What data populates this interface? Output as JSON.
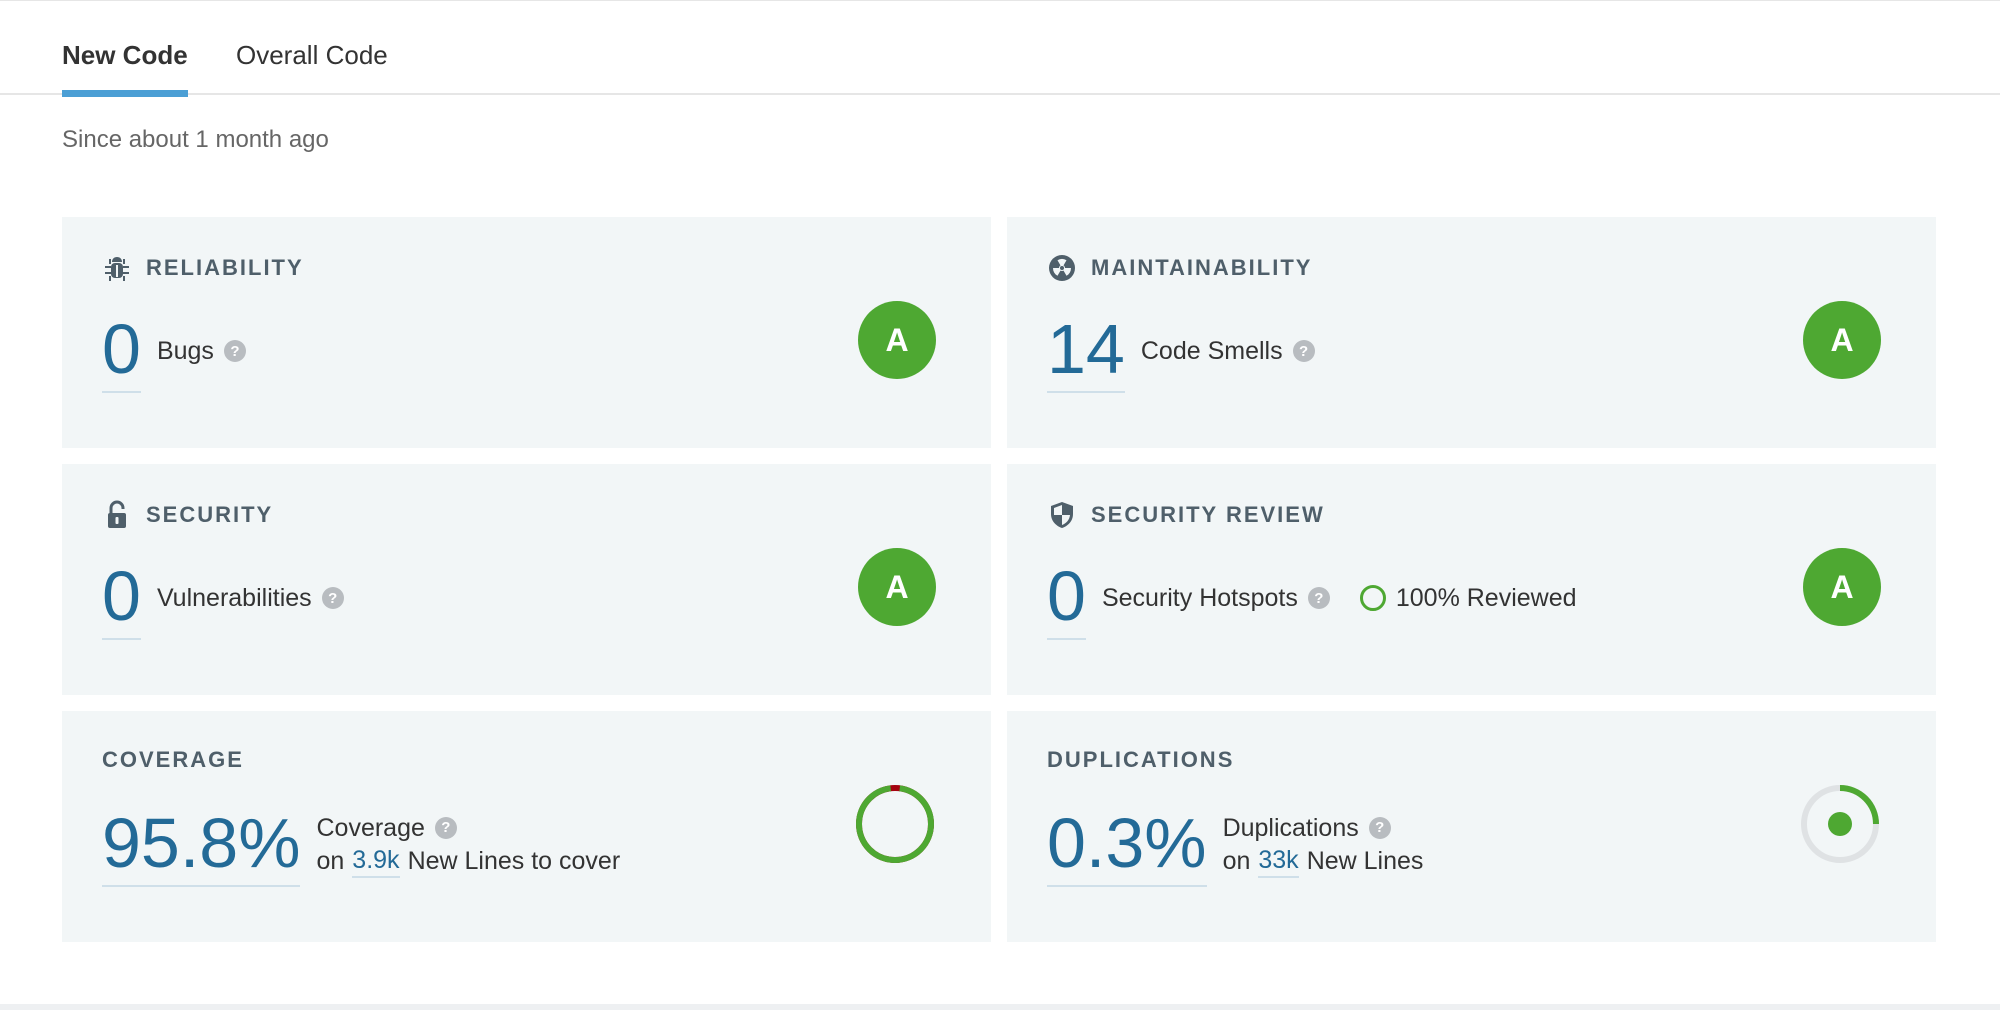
{
  "tabs": {
    "new_code": "New Code",
    "overall_code": "Overall Code"
  },
  "since": "Since about 1 month ago",
  "reliability": {
    "title": "RELIABILITY",
    "value": "0",
    "label": "Bugs",
    "rating": "A",
    "icon": "bug-icon"
  },
  "maintainability": {
    "title": "MAINTAINABILITY",
    "value": "14",
    "label": "Code Smells",
    "rating": "A",
    "icon": "radioactive-icon"
  },
  "security": {
    "title": "SECURITY",
    "value": "0",
    "label": "Vulnerabilities",
    "rating": "A",
    "icon": "lock-open-icon"
  },
  "security_review": {
    "title": "SECURITY REVIEW",
    "value": "0",
    "label": "Security Hotspots",
    "reviewed": "100% Reviewed",
    "rating": "A",
    "icon": "shield-icon"
  },
  "coverage": {
    "title": "COVERAGE",
    "value": "95.8%",
    "label": "Coverage",
    "on_text": "on",
    "lines_value": "3.9k",
    "lines_label": "New Lines to cover",
    "percent": 95.8
  },
  "duplications": {
    "title": "DUPLICATIONS",
    "value": "0.3%",
    "label": "Duplications",
    "on_text": "on",
    "lines_value": "33k",
    "lines_label": "New Lines",
    "percent": 0.3
  },
  "colors": {
    "accent": "#4b9fd5",
    "rating_a": "#4ea832",
    "value_blue": "#236a97",
    "card_bg": "#f2f6f7",
    "uncovered": "#a4030f"
  }
}
